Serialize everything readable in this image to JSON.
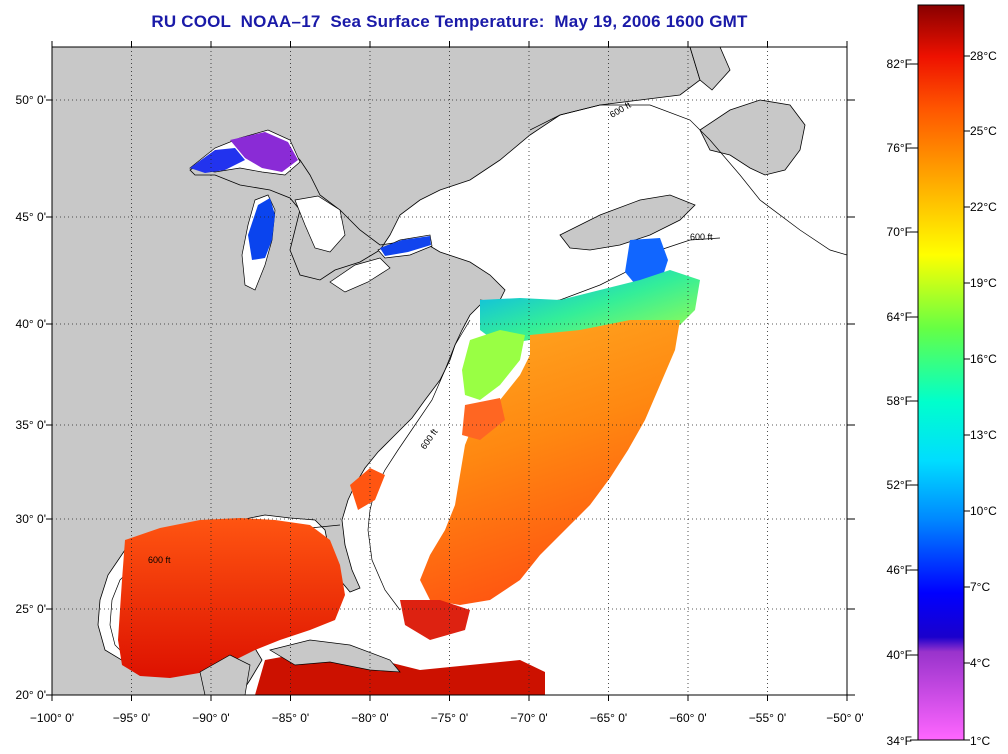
{
  "title": "RU COOL  NOAA–17  Sea Surface Temperature:  May 19, 2006 1600 GMT",
  "map": {
    "lon_range": [
      -100,
      -50
    ],
    "lat_range": [
      20,
      52.5
    ],
    "lon_ticks": [
      "−100° 0'",
      "−95° 0'",
      "−90° 0'",
      "−85° 0'",
      "−80° 0'",
      "−75° 0'",
      "−70° 0'",
      "−65° 0'",
      "−60° 0'",
      "−55° 0'",
      "−50° 0'"
    ],
    "lat_ticks": [
      "20° 0'",
      "25° 0'",
      "30° 0'",
      "35° 0'",
      "40° 0'",
      "45° 0'",
      "50° 0'"
    ],
    "grid": "dotted",
    "contour_label": "600 ft",
    "colors": {
      "land": "#c8c8c8",
      "no_data": "#ffffff",
      "coastline": "#000000"
    }
  },
  "colorbar": {
    "fahrenheit_labels": [
      "34°F",
      "40°F",
      "46°F",
      "52°F",
      "58°F",
      "64°F",
      "70°F",
      "76°F",
      "82°F"
    ],
    "celsius_labels": [
      "1°C",
      "4°C",
      "7°C",
      "10°C",
      "13°C",
      "16°C",
      "19°C",
      "22°C",
      "25°C",
      "28°C"
    ],
    "colors": [
      "#ff66ff",
      "#9933cc",
      "#0000ff",
      "#0088ff",
      "#00ddff",
      "#00ffcc",
      "#66ff44",
      "#ffff00",
      "#ffaa00",
      "#ff5500",
      "#ee1100",
      "#880000"
    ]
  }
}
